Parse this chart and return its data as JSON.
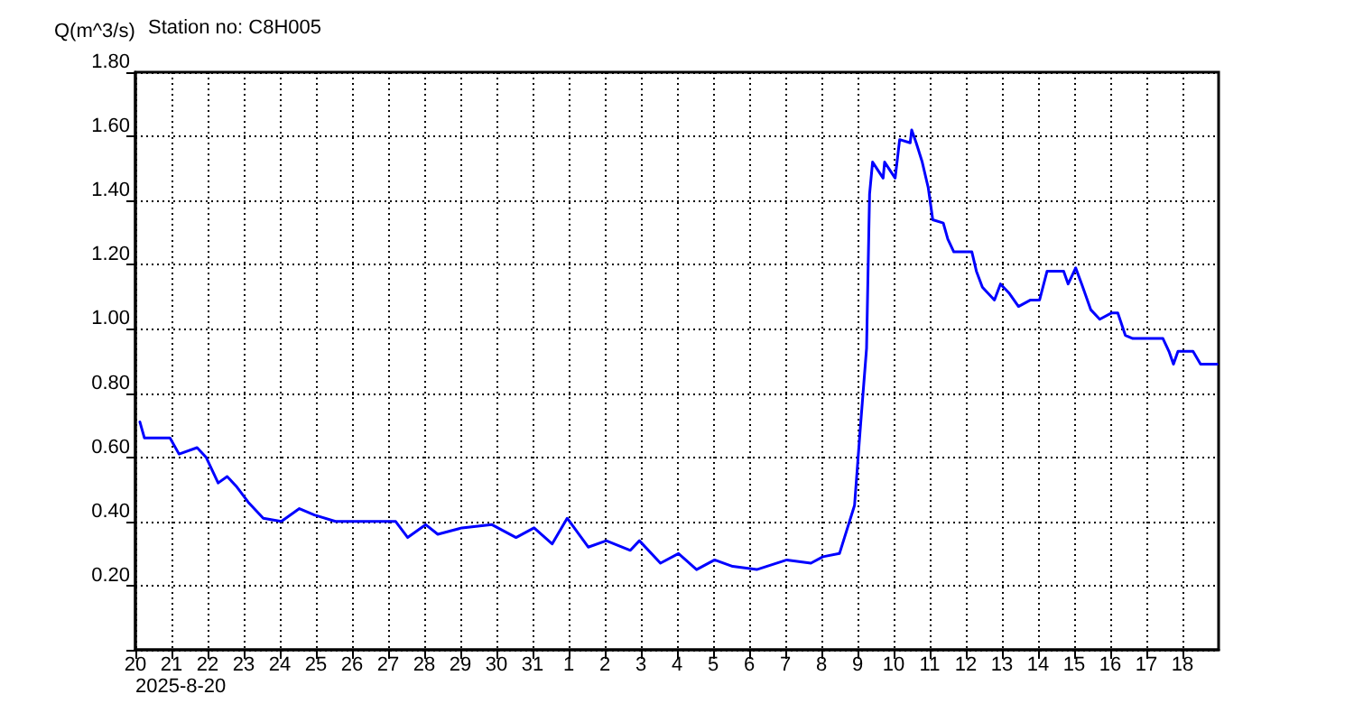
{
  "chart_data": {
    "type": "line",
    "title": "Station no: C8H005",
    "ylabel": "Q(m^3/s)",
    "xlabel": "2025-8-20",
    "x": [
      "2025-08-20T03:00",
      "2025-08-20T06:00",
      "2025-08-20T23:00",
      "2025-08-21T05:00",
      "2025-08-21T17:00",
      "2025-08-21T23:00",
      "2025-08-22T07:00",
      "2025-08-22T13:00",
      "2025-08-22T19:00",
      "2025-08-23T03:00",
      "2025-08-23T13:00",
      "2025-08-24T01:00",
      "2025-08-24T13:00",
      "2025-08-24T23:00",
      "2025-08-25T13:00",
      "2025-08-27T05:00",
      "2025-08-27T13:00",
      "2025-08-28T01:00",
      "2025-08-28T09:00",
      "2025-08-29T01:00",
      "2025-08-29T21:00",
      "2025-08-30T13:00",
      "2025-08-31T01:00",
      "2025-08-31T13:00",
      "2025-08-31T23:00",
      "2025-09-01T13:00",
      "2025-09-02T01:00",
      "2025-09-02T17:00",
      "2025-09-02T23:00",
      "2025-09-03T13:00",
      "2025-09-04T01:00",
      "2025-09-04T13:00",
      "2025-09-05T01:00",
      "2025-09-05T13:00",
      "2025-09-06T05:00",
      "2025-09-07T01:00",
      "2025-09-07T17:00",
      "2025-09-08T01:00",
      "2025-09-08T12:00",
      "2025-09-08T22:00",
      "2025-09-09T02:00",
      "2025-09-09T06:00",
      "2025-09-09T08:00",
      "2025-09-09T10:00",
      "2025-09-09T17:00",
      "2025-09-09T18:00",
      "2025-09-10T01:00",
      "2025-09-10T04:00",
      "2025-09-10T11:00",
      "2025-09-10T12:00",
      "2025-09-10T15:00",
      "2025-09-10T19:00",
      "2025-09-10T23:00",
      "2025-09-11T02:00",
      "2025-09-11T09:00",
      "2025-09-11T12:00",
      "2025-09-11T16:00",
      "2025-09-12T04:00",
      "2025-09-12T07:00",
      "2025-09-12T11:00",
      "2025-09-12T19:00",
      "2025-09-12T23:00",
      "2025-09-13T05:00",
      "2025-09-13T11:00",
      "2025-09-13T19:00",
      "2025-09-14T01:00",
      "2025-09-14T06:00",
      "2025-09-14T17:00",
      "2025-09-14T20:00",
      "2025-09-15T01:00",
      "2025-09-15T05:00",
      "2025-09-15T11:00",
      "2025-09-15T17:00",
      "2025-09-16T01:00",
      "2025-09-16T05:00",
      "2025-09-16T10:00",
      "2025-09-16T15:00",
      "2025-09-17T11:00",
      "2025-09-17T15:00",
      "2025-09-17T18:00",
      "2025-09-17T21:00",
      "2025-09-18T07:00",
      "2025-09-18T12:00",
      "2025-09-18T23:00"
    ],
    "series": [
      {
        "color": "#0000ff",
        "values": [
          0.71,
          0.66,
          0.66,
          0.61,
          0.63,
          0.6,
          0.52,
          0.54,
          0.51,
          0.46,
          0.41,
          0.4,
          0.44,
          0.42,
          0.4,
          0.4,
          0.35,
          0.39,
          0.36,
          0.38,
          0.39,
          0.35,
          0.38,
          0.33,
          0.41,
          0.32,
          0.34,
          0.31,
          0.34,
          0.27,
          0.3,
          0.25,
          0.28,
          0.26,
          0.25,
          0.28,
          0.27,
          0.29,
          0.3,
          0.45,
          0.7,
          0.94,
          1.42,
          1.52,
          1.47,
          1.52,
          1.47,
          1.59,
          1.58,
          1.62,
          1.58,
          1.52,
          1.44,
          1.34,
          1.33,
          1.28,
          1.24,
          1.24,
          1.18,
          1.13,
          1.09,
          1.14,
          1.11,
          1.07,
          1.09,
          1.09,
          1.18,
          1.18,
          1.14,
          1.19,
          1.14,
          1.06,
          1.03,
          1.05,
          1.05,
          0.98,
          0.97,
          0.97,
          0.93,
          0.89,
          0.93,
          0.93,
          0.89,
          0.89
        ]
      }
    ],
    "xlim": [
      "2025-08-20",
      "2025-09-19"
    ],
    "xticks": [
      {
        "value": "2025-08-20",
        "label": "20"
      },
      {
        "value": "2025-08-21",
        "label": "21"
      },
      {
        "value": "2025-08-22",
        "label": "22"
      },
      {
        "value": "2025-08-23",
        "label": "23"
      },
      {
        "value": "2025-08-24",
        "label": "24"
      },
      {
        "value": "2025-08-25",
        "label": "25"
      },
      {
        "value": "2025-08-26",
        "label": "26"
      },
      {
        "value": "2025-08-27",
        "label": "27"
      },
      {
        "value": "2025-08-28",
        "label": "28"
      },
      {
        "value": "2025-08-29",
        "label": "29"
      },
      {
        "value": "2025-08-30",
        "label": "30"
      },
      {
        "value": "2025-08-31",
        "label": "31"
      },
      {
        "value": "2025-09-01",
        "label": "1"
      },
      {
        "value": "2025-09-02",
        "label": "2"
      },
      {
        "value": "2025-09-03",
        "label": "3"
      },
      {
        "value": "2025-09-04",
        "label": "4"
      },
      {
        "value": "2025-09-05",
        "label": "5"
      },
      {
        "value": "2025-09-06",
        "label": "6"
      },
      {
        "value": "2025-09-07",
        "label": "7"
      },
      {
        "value": "2025-09-08",
        "label": "8"
      },
      {
        "value": "2025-09-09",
        "label": "9"
      },
      {
        "value": "2025-09-10",
        "label": "10"
      },
      {
        "value": "2025-09-11",
        "label": "11"
      },
      {
        "value": "2025-09-12",
        "label": "12"
      },
      {
        "value": "2025-09-13",
        "label": "13"
      },
      {
        "value": "2025-09-14",
        "label": "14"
      },
      {
        "value": "2025-09-15",
        "label": "15"
      },
      {
        "value": "2025-09-16",
        "label": "16"
      },
      {
        "value": "2025-09-17",
        "label": "17"
      },
      {
        "value": "2025-09-18",
        "label": "18"
      }
    ],
    "ylim": [
      0,
      1.8
    ],
    "yticks": [
      {
        "value": 0,
        "label": null
      },
      {
        "value": 0.2,
        "label": "0.20"
      },
      {
        "value": 0.4,
        "label": "0.40"
      },
      {
        "value": 0.6,
        "label": "0.60"
      },
      {
        "value": 0.8,
        "label": "0.80"
      },
      {
        "value": 1.0,
        "label": "1.00"
      },
      {
        "value": 1.2,
        "label": "1.20"
      },
      {
        "value": 1.4,
        "label": "1.40"
      },
      {
        "value": 1.6,
        "label": "1.60"
      },
      {
        "value": 1.8,
        "label": "1.80"
      }
    ],
    "grid": true,
    "marker": "none",
    "line_style": "solid"
  }
}
